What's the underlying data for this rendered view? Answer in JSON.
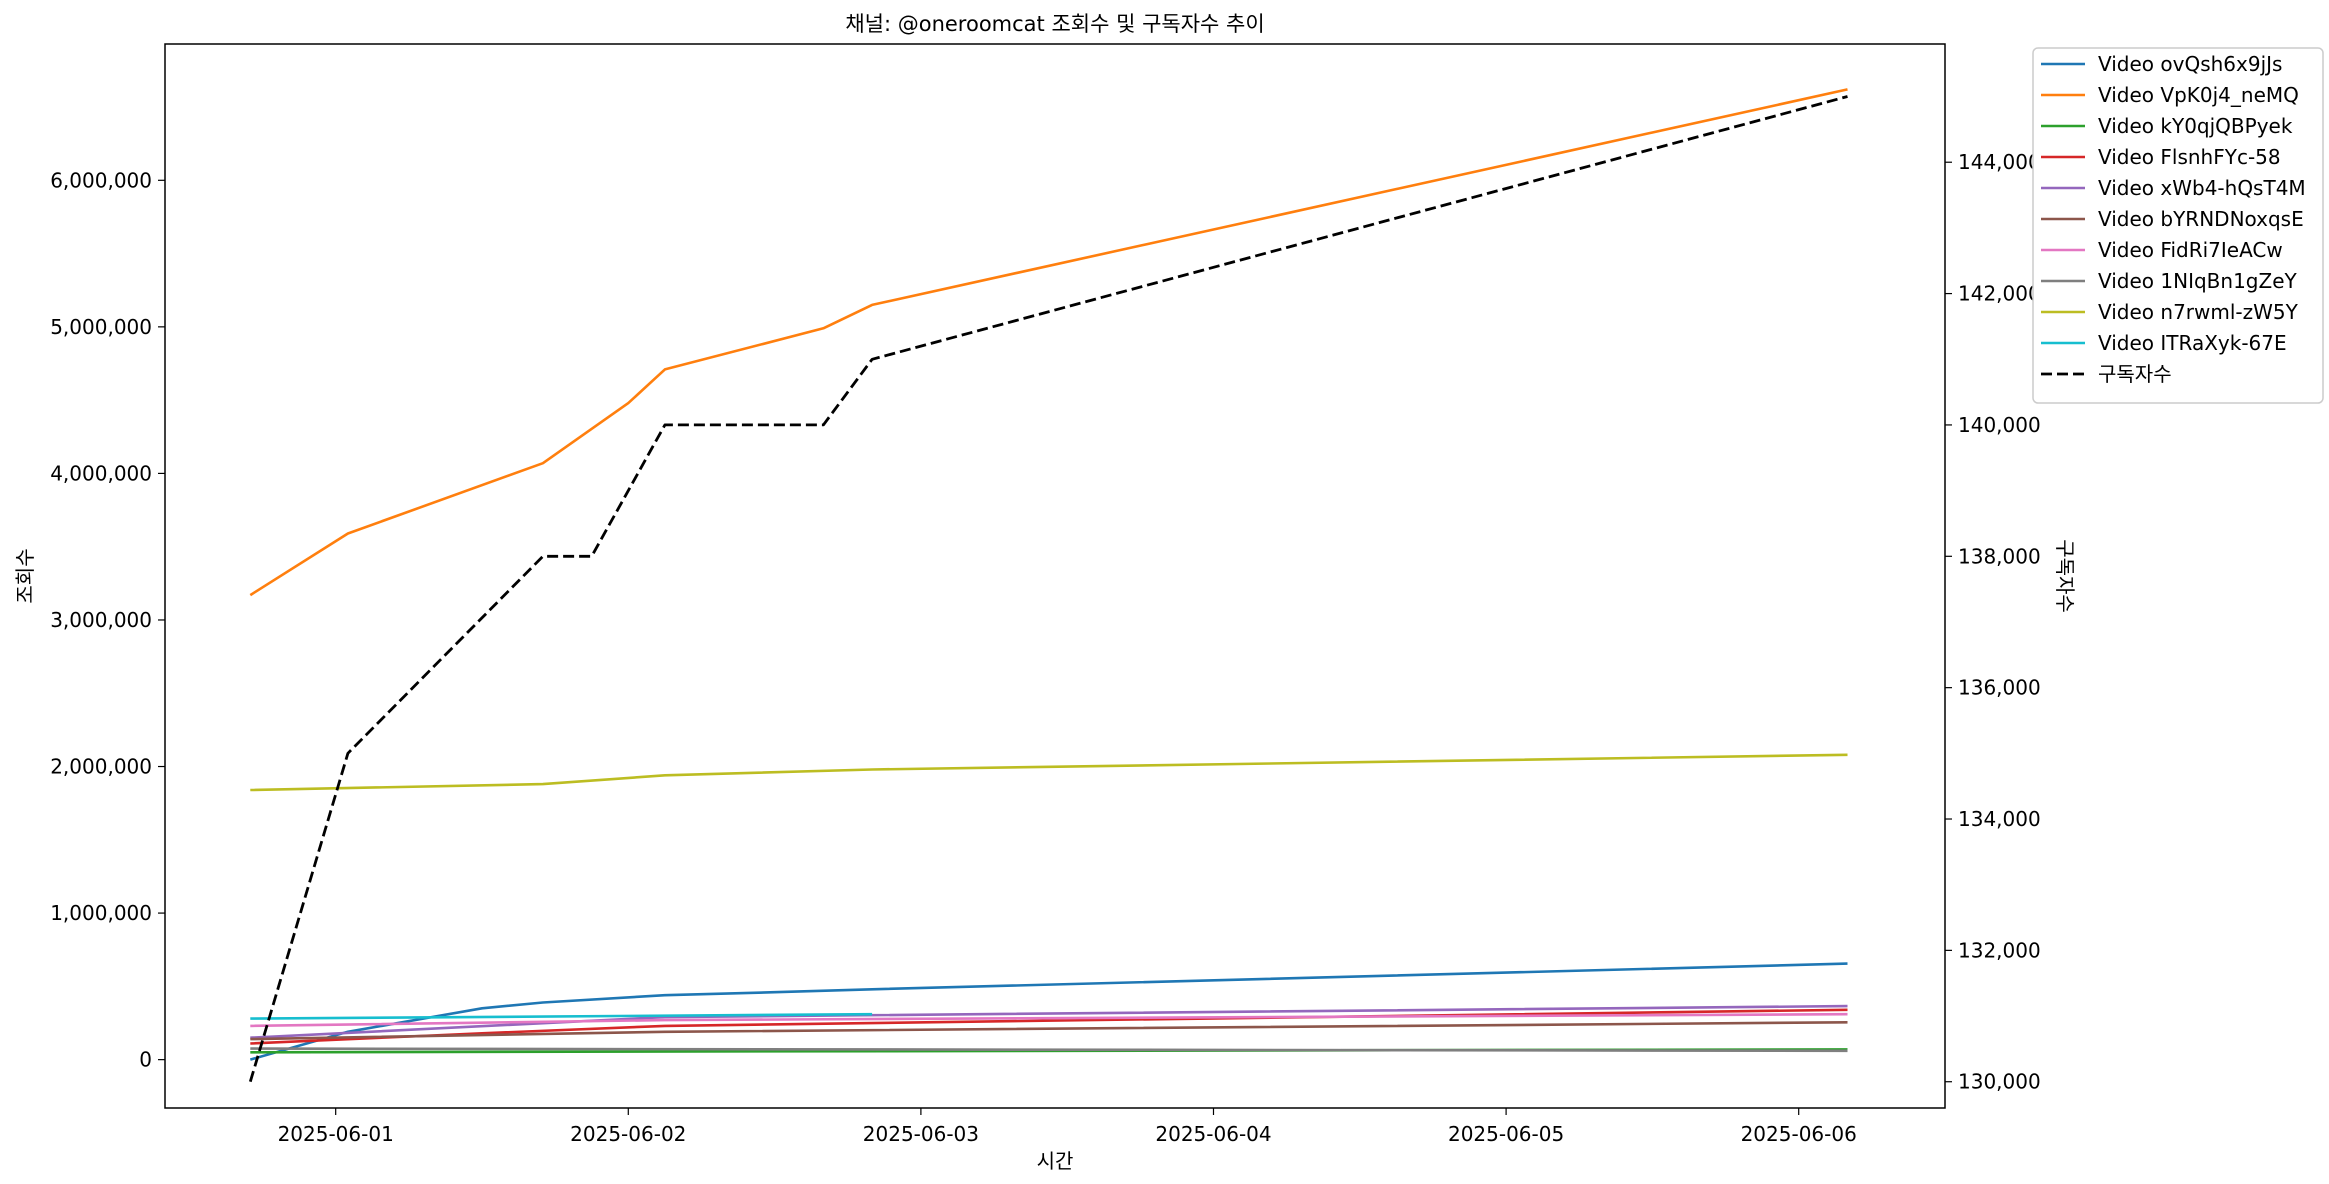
{
  "chart_data": {
    "type": "line",
    "title": "채널: @oneroomcat 조회수 및 구독자수 추이",
    "xlabel": "시간",
    "ylabel_left": "조회수",
    "ylabel_right": "구독자수",
    "x_tick_labels": [
      "2025-06-01",
      "2025-06-02",
      "2025-06-03",
      "2025-06-04",
      "2025-06-05",
      "2025-06-06"
    ],
    "y_left_ticks": [
      0,
      1000000,
      2000000,
      3000000,
      4000000,
      5000000,
      6000000
    ],
    "y_left_tick_labels": [
      "0",
      "1,000,000",
      "2,000,000",
      "3,000,000",
      "4,000,000",
      "5,000,000",
      "6,000,000"
    ],
    "y_right_ticks": [
      130000,
      132000,
      134000,
      136000,
      138000,
      140000,
      142000,
      144000
    ],
    "y_right_tick_labels": [
      "130,000",
      "132,000",
      "134,000",
      "136,000",
      "138,000",
      "140,000",
      "142,000",
      "144,000"
    ],
    "x_range": [
      "2025-05-31T10:00",
      "2025-06-06T12:00"
    ],
    "y_left_range": [
      -330000,
      6930000
    ],
    "y_right_range": [
      129600,
      145800
    ],
    "grid": false,
    "legend_position": "outside top-right",
    "series": [
      {
        "name": "Video ovQsh6x9jJs",
        "color": "#1f77b4",
        "axis": "left",
        "x": [
          "2025-05-31T17:00",
          "2025-06-01T01:00",
          "2025-06-01T12:00",
          "2025-06-01T17:00",
          "2025-06-02T03:00",
          "2025-06-02T12:00",
          "2025-06-02T20:00",
          "2025-06-06T04:00"
        ],
        "y": [
          0,
          190000,
          350000,
          390000,
          440000,
          460000,
          480000,
          655000
        ]
      },
      {
        "name": "Video VpK0j4_neMQ",
        "color": "#ff7f0e",
        "axis": "left",
        "x": [
          "2025-05-31T17:00",
          "2025-06-01T01:00",
          "2025-06-01T17:00",
          "2025-06-02T00:00",
          "2025-06-02T03:00",
          "2025-06-02T16:00",
          "2025-06-02T20:00",
          "2025-06-06T04:00"
        ],
        "y": [
          3170000,
          3590000,
          4070000,
          4480000,
          4710000,
          4990000,
          5150000,
          6620000
        ]
      },
      {
        "name": "Video kY0qjQBPyek",
        "color": "#2ca02c",
        "axis": "left",
        "x": [
          "2025-05-31T17:00",
          "2025-06-06T04:00"
        ],
        "y": [
          50000,
          70000
        ]
      },
      {
        "name": "Video FlsnhFYc-58",
        "color": "#d62728",
        "axis": "left",
        "x": [
          "2025-05-31T17:00",
          "2025-06-01T12:00",
          "2025-06-02T03:00",
          "2025-06-06T04:00"
        ],
        "y": [
          110000,
          180000,
          230000,
          340000
        ]
      },
      {
        "name": "Video xWb4-hQsT4M",
        "color": "#9467bd",
        "axis": "left",
        "x": [
          "2025-05-31T17:00",
          "2025-06-02T03:00",
          "2025-06-06T04:00"
        ],
        "y": [
          150000,
          290000,
          365000
        ]
      },
      {
        "name": "Video bYRNDNoxqsE",
        "color": "#8c564b",
        "axis": "left",
        "x": [
          "2025-05-31T17:00",
          "2025-06-02T03:00",
          "2025-06-06T04:00"
        ],
        "y": [
          140000,
          190000,
          255000
        ]
      },
      {
        "name": "Video FidRi7IeACw",
        "color": "#e377c2",
        "axis": "left",
        "x": [
          "2025-05-31T17:00",
          "2025-06-02T03:00",
          "2025-06-06T04:00"
        ],
        "y": [
          230000,
          270000,
          310000
        ]
      },
      {
        "name": "Video 1NIqBn1gZeY",
        "color": "#7f7f7f",
        "axis": "left",
        "x": [
          "2025-05-31T17:00",
          "2025-06-06T04:00"
        ],
        "y": [
          75000,
          60000
        ]
      },
      {
        "name": "Video n7rwml-zW5Y",
        "color": "#bcbd22",
        "axis": "left",
        "x": [
          "2025-05-31T17:00",
          "2025-06-01T17:00",
          "2025-06-02T03:00",
          "2025-06-02T20:00",
          "2025-06-06T04:00"
        ],
        "y": [
          1840000,
          1880000,
          1940000,
          1980000,
          2080000
        ]
      },
      {
        "name": "Video ITRaXyk-67E",
        "color": "#17becf",
        "axis": "left",
        "x": [
          "2025-05-31T17:00",
          "2025-06-02T20:00"
        ],
        "y": [
          280000,
          310000
        ]
      },
      {
        "name": "구독자수",
        "color": "#000000",
        "axis": "right",
        "dashed": true,
        "x": [
          "2025-05-31T17:00",
          "2025-06-01T01:00",
          "2025-06-01T17:00",
          "2025-06-01T21:00",
          "2025-06-02T03:00",
          "2025-06-02T16:00",
          "2025-06-02T20:00",
          "2025-06-06T04:00"
        ],
        "y": [
          130000,
          135000,
          138000,
          138000,
          140000,
          140000,
          141000,
          145000
        ]
      }
    ]
  }
}
